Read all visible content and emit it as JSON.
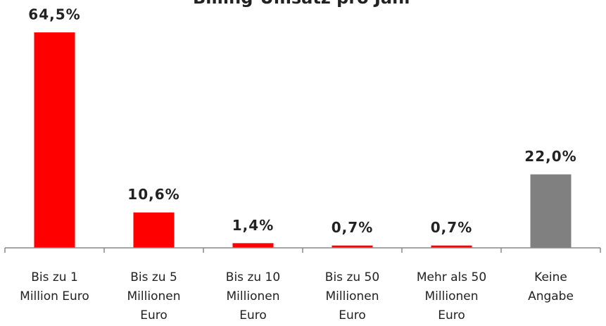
{
  "chart_data": {
    "type": "bar",
    "title": "Billing-Umsatz pro Jahr",
    "categories": [
      [
        "Bis zu 1",
        "Million Euro"
      ],
      [
        "Bis zu 5",
        "Millionen",
        "Euro"
      ],
      [
        "Bis zu 10",
        "Millionen",
        "Euro"
      ],
      [
        "Bis zu 50",
        "Millionen",
        "Euro"
      ],
      [
        "Mehr als 50",
        "Millionen",
        "Euro"
      ],
      [
        "Keine",
        "Angabe"
      ]
    ],
    "values": [
      64.5,
      10.6,
      1.4,
      0.7,
      0.7,
      22.0
    ],
    "value_labels": [
      "64,5%",
      "10,6%",
      "1,4%",
      "0,7%",
      "0,7%",
      "22,0%"
    ],
    "colors": [
      "#ff0000",
      "#ff0000",
      "#ff0000",
      "#ff0000",
      "#ff0000",
      "#808080"
    ]
  }
}
